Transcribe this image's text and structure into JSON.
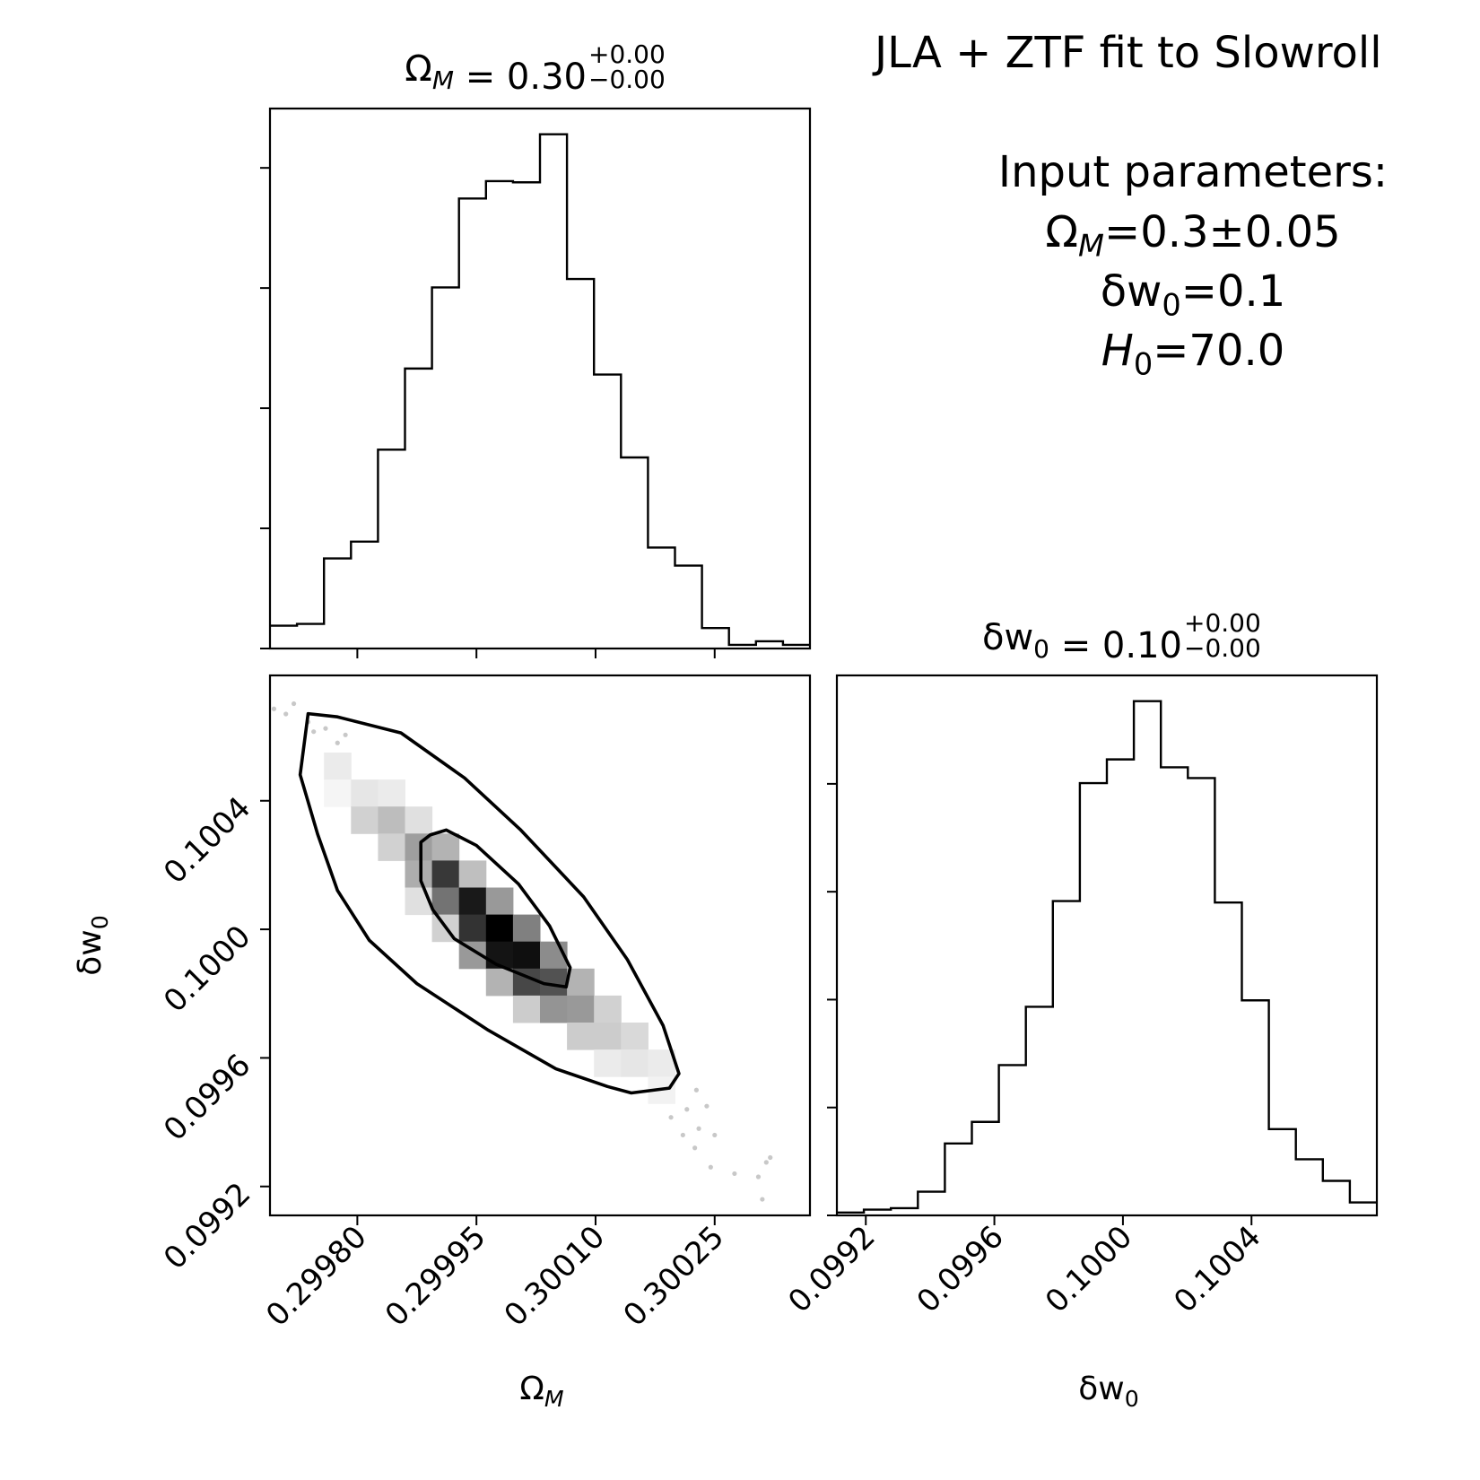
{
  "figure": {
    "title": "JLA + ZTF fit to Slowroll",
    "input_heading": "Input parameters:",
    "input_lines": [
      {
        "sym": "Ω",
        "sub": "M",
        "rest": "=0.3±0.05",
        "italic": false,
        "subItalic": true
      },
      {
        "sym": "δw",
        "sub": "0",
        "rest": "=0.1",
        "italic": false,
        "subItalic": false
      },
      {
        "sym": "H",
        "sub": "0",
        "rest": "=70.0",
        "italic": true,
        "subItalic": false
      }
    ]
  },
  "panels": {
    "omega_title": {
      "sym": "Ω",
      "sub": "M",
      "subItalic": true,
      "value": "0.30",
      "plus": "+0.00",
      "minus": "−0.00"
    },
    "dw_title": {
      "sym": "δw",
      "sub": "0",
      "subItalic": false,
      "value": "0.10",
      "plus": "+0.00",
      "minus": "−0.00"
    },
    "xlabel_omega": {
      "sym": "Ω",
      "sub": "M",
      "subItalic": true
    },
    "xlabel_dw": {
      "sym": "δw",
      "sub": "0",
      "subItalic": false
    },
    "ylabel_dw": {
      "sym": "δw",
      "sub": "0",
      "subItalic": false
    }
  },
  "chart_data": [
    {
      "type": "histogram",
      "name": "Omega_M marginal",
      "x_range": [
        0.29969,
        0.30037
      ],
      "bin_edges": [
        0.29969,
        0.299724,
        0.299758,
        0.299792,
        0.299826,
        0.29986,
        0.299894,
        0.299928,
        0.299962,
        0.299996,
        0.30003,
        0.300064,
        0.300098,
        0.300132,
        0.300166,
        0.3002,
        0.300234,
        0.300268,
        0.300302,
        0.300336,
        0.30037
      ],
      "counts": [
        38,
        41,
        150,
        178,
        331,
        466,
        601,
        749,
        778,
        776,
        856,
        615,
        456,
        318,
        168,
        138,
        34,
        6,
        12,
        6
      ],
      "x_ticks": [
        0.2998,
        0.29995,
        0.3001,
        0.30025
      ],
      "x_tick_labels": [
        "0.29980",
        "0.29995",
        "0.30010",
        "0.30025"
      ],
      "y_tick_values": [
        0,
        200,
        400,
        600,
        800
      ]
    },
    {
      "type": "histogram",
      "name": "delta_w0 marginal",
      "x_range": [
        0.09911,
        0.10079
      ],
      "bin_edges": [
        0.09911,
        0.099194,
        0.099278,
        0.099362,
        0.099446,
        0.09953,
        0.099614,
        0.099698,
        0.099782,
        0.099866,
        0.09995,
        0.100034,
        0.100118,
        0.100202,
        0.100286,
        0.10037,
        0.100454,
        0.100538,
        0.100622,
        0.100706,
        0.10079
      ],
      "counts": [
        4,
        8,
        10,
        33,
        100,
        130,
        209,
        290,
        437,
        601,
        634,
        715,
        623,
        608,
        435,
        299,
        120,
        78,
        48,
        18
      ],
      "x_ticks": [
        0.0992,
        0.0996,
        0.1,
        0.1004
      ],
      "x_tick_labels": [
        "0.0992",
        "0.0996",
        "0.1000",
        "0.1004"
      ],
      "y_tick_values": [
        0,
        150,
        300,
        450,
        600
      ]
    },
    {
      "type": "heatmap",
      "name": "Omega_M vs delta_w0 joint density",
      "x_range": [
        0.29969,
        0.30037
      ],
      "y_range": [
        0.09911,
        0.10079
      ],
      "x_ticks": [
        0.2998,
        0.29995,
        0.3001,
        0.30025
      ],
      "x_tick_labels": [
        "0.29980",
        "0.29995",
        "0.30010",
        "0.30025"
      ],
      "y_ticks": [
        0.0992,
        0.0996,
        0.1,
        0.1004
      ],
      "y_tick_labels": [
        "0.0992",
        "0.0996",
        "0.1000",
        "0.1004"
      ],
      "density_cells": [
        {
          "x": 0.299775,
          "y": 0.100508,
          "v": 0.08
        },
        {
          "x": 0.299775,
          "y": 0.100424,
          "v": 0.04
        },
        {
          "x": 0.299809,
          "y": 0.100424,
          "v": 0.1
        },
        {
          "x": 0.299809,
          "y": 0.10034,
          "v": 0.18
        },
        {
          "x": 0.299843,
          "y": 0.100424,
          "v": 0.08
        },
        {
          "x": 0.299843,
          "y": 0.10034,
          "v": 0.26
        },
        {
          "x": 0.299843,
          "y": 0.100256,
          "v": 0.18
        },
        {
          "x": 0.299877,
          "y": 0.10034,
          "v": 0.12
        },
        {
          "x": 0.299877,
          "y": 0.100256,
          "v": 0.38
        },
        {
          "x": 0.299877,
          "y": 0.100172,
          "v": 0.32
        },
        {
          "x": 0.299877,
          "y": 0.100088,
          "v": 0.12
        },
        {
          "x": 0.299911,
          "y": 0.100256,
          "v": 0.3
        },
        {
          "x": 0.299911,
          "y": 0.100172,
          "v": 0.78
        },
        {
          "x": 0.299911,
          "y": 0.100088,
          "v": 0.55
        },
        {
          "x": 0.299911,
          "y": 0.100004,
          "v": 0.18
        },
        {
          "x": 0.299945,
          "y": 0.100172,
          "v": 0.25
        },
        {
          "x": 0.299945,
          "y": 0.100088,
          "v": 0.9
        },
        {
          "x": 0.299945,
          "y": 0.100004,
          "v": 0.8
        },
        {
          "x": 0.299945,
          "y": 0.09992,
          "v": 0.4
        },
        {
          "x": 0.299979,
          "y": 0.100088,
          "v": 0.4
        },
        {
          "x": 0.299979,
          "y": 0.100004,
          "v": 1.0
        },
        {
          "x": 0.299979,
          "y": 0.09992,
          "v": 0.92
        },
        {
          "x": 0.299979,
          "y": 0.099836,
          "v": 0.3
        },
        {
          "x": 0.300013,
          "y": 0.100004,
          "v": 0.5
        },
        {
          "x": 0.300013,
          "y": 0.09992,
          "v": 0.94
        },
        {
          "x": 0.300013,
          "y": 0.099836,
          "v": 0.72
        },
        {
          "x": 0.300013,
          "y": 0.099752,
          "v": 0.2
        },
        {
          "x": 0.300047,
          "y": 0.09992,
          "v": 0.45
        },
        {
          "x": 0.300047,
          "y": 0.099836,
          "v": 0.68
        },
        {
          "x": 0.300047,
          "y": 0.099752,
          "v": 0.42
        },
        {
          "x": 0.300081,
          "y": 0.099836,
          "v": 0.3
        },
        {
          "x": 0.300081,
          "y": 0.099752,
          "v": 0.4
        },
        {
          "x": 0.300081,
          "y": 0.099668,
          "v": 0.2
        },
        {
          "x": 0.300115,
          "y": 0.099752,
          "v": 0.18
        },
        {
          "x": 0.300115,
          "y": 0.099668,
          "v": 0.2
        },
        {
          "x": 0.300115,
          "y": 0.099584,
          "v": 0.08
        },
        {
          "x": 0.300149,
          "y": 0.099668,
          "v": 0.15
        },
        {
          "x": 0.300149,
          "y": 0.099584,
          "v": 0.1
        },
        {
          "x": 0.300183,
          "y": 0.099584,
          "v": 0.08
        },
        {
          "x": 0.300183,
          "y": 0.0995,
          "v": 0.05
        }
      ],
      "contour_outer": [
        [
          0.299738,
          0.100671
        ],
        [
          0.299775,
          0.100661
        ],
        [
          0.299855,
          0.100611
        ],
        [
          0.299935,
          0.100471
        ],
        [
          0.300005,
          0.100311
        ],
        [
          0.300085,
          0.100101
        ],
        [
          0.30014,
          0.099906
        ],
        [
          0.300185,
          0.099701
        ],
        [
          0.300205,
          0.099551
        ],
        [
          0.300193,
          0.099506
        ],
        [
          0.300145,
          0.099491
        ],
        [
          0.300115,
          0.099511
        ],
        [
          0.30005,
          0.099566
        ],
        [
          0.299965,
          0.099686
        ],
        [
          0.299875,
          0.099831
        ],
        [
          0.299815,
          0.099966
        ],
        [
          0.299775,
          0.100121
        ],
        [
          0.29975,
          0.100296
        ],
        [
          0.299728,
          0.100481
        ],
        [
          0.299738,
          0.100671
        ]
      ],
      "contour_inner": [
        [
          0.299892,
          0.100294
        ],
        [
          0.299912,
          0.100309
        ],
        [
          0.29995,
          0.100261
        ],
        [
          0.300003,
          0.100141
        ],
        [
          0.300042,
          0.100011
        ],
        [
          0.300068,
          0.099881
        ],
        [
          0.300063,
          0.099821
        ],
        [
          0.300035,
          0.099831
        ],
        [
          0.299975,
          0.099891
        ],
        [
          0.299922,
          0.099971
        ],
        [
          0.299895,
          0.100061
        ],
        [
          0.29988,
          0.100151
        ],
        [
          0.29988,
          0.100271
        ],
        [
          0.299892,
          0.100294
        ]
      ],
      "scatter_points": [
        [
          0.29971,
          0.10067
        ],
        [
          0.299738,
          0.100645
        ],
        [
          0.29976,
          0.100625
        ],
        [
          0.299785,
          0.100605
        ],
        [
          0.29972,
          0.100702
        ],
        [
          0.299745,
          0.100615
        ],
        [
          0.299775,
          0.10058
        ],
        [
          0.299695,
          0.100686
        ],
        [
          0.300215,
          0.09944
        ],
        [
          0.300195,
          0.099415
        ],
        [
          0.30023,
          0.09938
        ],
        [
          0.30025,
          0.09936
        ],
        [
          0.30021,
          0.09936
        ],
        [
          0.300245,
          0.09926
        ],
        [
          0.300275,
          0.09924
        ],
        [
          0.300305,
          0.09923
        ],
        [
          0.300315,
          0.099275
        ],
        [
          0.30032,
          0.09929
        ],
        [
          0.30024,
          0.09945
        ],
        [
          0.300227,
          0.0995
        ],
        [
          0.30031,
          0.09916
        ],
        [
          0.300225,
          0.09932
        ]
      ]
    }
  ]
}
